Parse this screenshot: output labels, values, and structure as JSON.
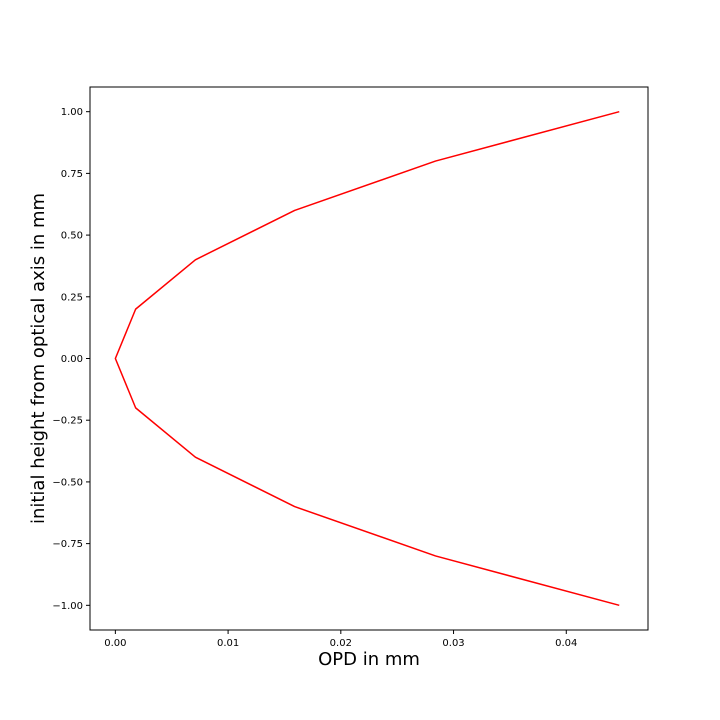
{
  "chart_data": {
    "type": "line",
    "title": "",
    "xlabel": "OPD in mm",
    "ylabel": "initial height from optical axis in mm",
    "xlim": [
      -0.00225,
      0.04725
    ],
    "ylim": [
      -1.1,
      1.1
    ],
    "xticks": [
      0.0,
      0.01,
      0.02,
      0.03,
      0.04
    ],
    "xtick_labels": [
      "0.00",
      "0.01",
      "0.02",
      "0.03",
      "0.04"
    ],
    "yticks": [
      -1.0,
      -0.75,
      -0.5,
      -0.25,
      0.0,
      0.25,
      0.5,
      0.75,
      1.0
    ],
    "ytick_labels": [
      "−1.00",
      "−0.75",
      "−0.50",
      "−0.25",
      "0.00",
      "0.25",
      "0.50",
      "0.75",
      "1.00"
    ],
    "grid": false,
    "series": [
      {
        "color": "#ff0000",
        "x": [
          0.0447,
          0.0284,
          0.0159,
          0.0071,
          0.0018,
          0.0,
          0.0018,
          0.0071,
          0.0159,
          0.0284,
          0.0447
        ],
        "y": [
          -1.0,
          -0.8,
          -0.6,
          -0.4,
          -0.2,
          0.0,
          0.2,
          0.4,
          0.6,
          0.8,
          1.0
        ]
      }
    ]
  }
}
